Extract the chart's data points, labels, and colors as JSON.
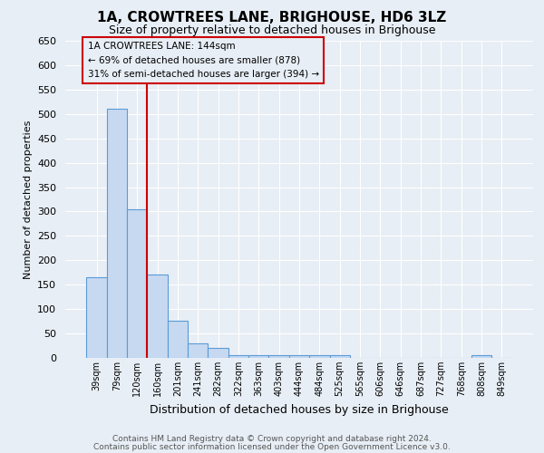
{
  "title": "1A, CROWTREES LANE, BRIGHOUSE, HD6 3LZ",
  "subtitle": "Size of property relative to detached houses in Brighouse",
  "xlabel": "Distribution of detached houses by size in Brighouse",
  "ylabel": "Number of detached properties",
  "footnote1": "Contains HM Land Registry data © Crown copyright and database right 2024.",
  "footnote2": "Contains public sector information licensed under the Open Government Licence v3.0.",
  "bar_labels": [
    "39sqm",
    "79sqm",
    "120sqm",
    "160sqm",
    "201sqm",
    "241sqm",
    "282sqm",
    "322sqm",
    "363sqm",
    "403sqm",
    "444sqm",
    "484sqm",
    "525sqm",
    "565sqm",
    "606sqm",
    "646sqm",
    "687sqm",
    "727sqm",
    "768sqm",
    "808sqm",
    "849sqm"
  ],
  "bar_values": [
    165,
    510,
    305,
    170,
    76,
    30,
    20,
    6,
    5,
    5,
    5,
    5,
    5,
    0,
    0,
    0,
    0,
    0,
    0,
    5,
    0
  ],
  "bar_color": "#c6d9f1",
  "bar_edge_color": "#5b9bd5",
  "ylim": [
    0,
    650
  ],
  "yticks": [
    0,
    50,
    100,
    150,
    200,
    250,
    300,
    350,
    400,
    450,
    500,
    550,
    600,
    650
  ],
  "vline_x": 2.5,
  "vline_color": "#cc0000",
  "annotation_title": "1A CROWTREES LANE: 144sqm",
  "annotation_line1": "← 69% of detached houses are smaller (878)",
  "annotation_line2": "31% of semi-detached houses are larger (394) →",
  "bg_color": "#e8eef5",
  "grid_color": "#ffffff"
}
